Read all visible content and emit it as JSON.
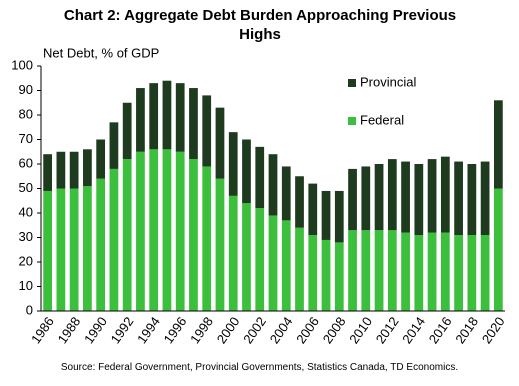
{
  "chart_data": {
    "type": "stacked_bar",
    "title": "Chart 2: Aggregate Debt Burden Approaching Previous Highs",
    "y_label": "Net Debt, % of GDP",
    "source": "Source: Federal Government, Provincial Governments, Statistics Canada, TD Economics.",
    "categories": [
      "1986",
      null,
      "1988",
      null,
      "1990",
      null,
      "1992",
      null,
      "1994",
      null,
      "1996",
      null,
      "1998",
      null,
      "2000",
      null,
      "2002",
      null,
      "2004",
      null,
      "2006",
      null,
      "2008",
      null,
      "2010",
      null,
      "2012",
      null,
      "2014",
      null,
      "2016",
      null,
      "2018",
      null,
      "2020"
    ],
    "series": [
      {
        "name": "Federal",
        "color": "#3cbf3c",
        "values": [
          49,
          50,
          50,
          51,
          54,
          58,
          62,
          65,
          66,
          66,
          65,
          62,
          59,
          54,
          47,
          44,
          42,
          39,
          37,
          34,
          31,
          29,
          28,
          33,
          33,
          33,
          33,
          32,
          31,
          32,
          32,
          31,
          31,
          31,
          50
        ]
      },
      {
        "name": "Provincial",
        "color": "#1f3b1f",
        "values": [
          15,
          15,
          15,
          15,
          16,
          19,
          23,
          26,
          27,
          28,
          28,
          29,
          29,
          29,
          26,
          26,
          25,
          25,
          22,
          21,
          21,
          20,
          21,
          25,
          26,
          27,
          29,
          29,
          29,
          30,
          31,
          30,
          29,
          30,
          36
        ]
      }
    ],
    "ylim": [
      0,
      100
    ],
    "yticks": [
      0,
      10,
      20,
      30,
      40,
      50,
      60,
      70,
      80,
      90,
      100
    ],
    "grid": false
  }
}
